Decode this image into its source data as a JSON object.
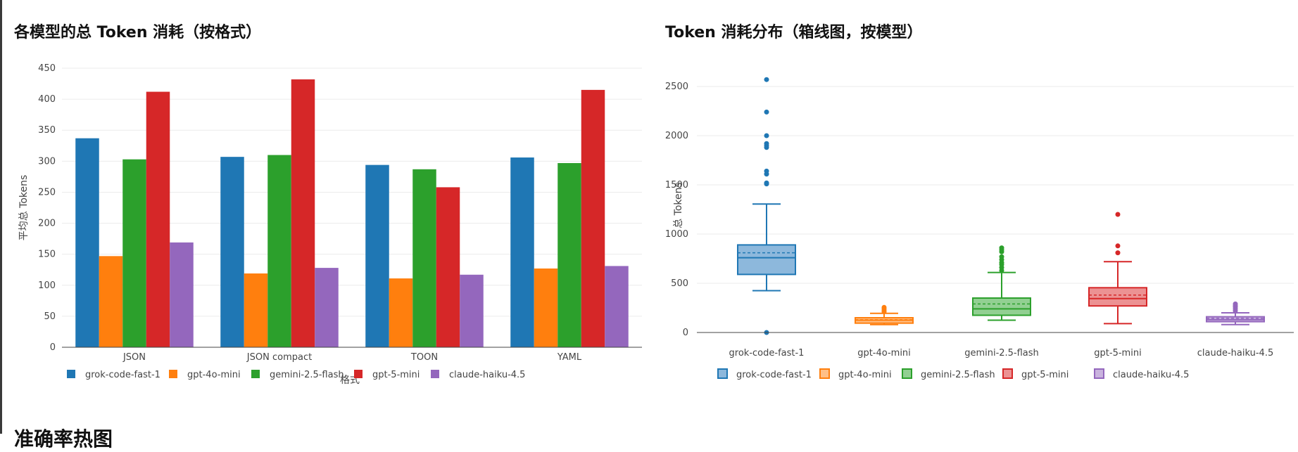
{
  "page": {
    "section_heading": "准确率热图"
  },
  "chart_data": [
    {
      "type": "bar",
      "title": "各模型的总 Token 消耗（按格式）",
      "xlabel": "格式",
      "ylabel": "平均总 Tokens",
      "ylim": [
        0,
        450
      ],
      "yticks": [
        0,
        50,
        100,
        150,
        200,
        250,
        300,
        350,
        400,
        450
      ],
      "categories": [
        "JSON",
        "JSON compact",
        "TOON",
        "YAML"
      ],
      "legend_position": "bottom",
      "series": [
        {
          "name": "grok-code-fast-1",
          "color": "#1f77b4",
          "values": [
            337,
            307,
            294,
            306
          ]
        },
        {
          "name": "gpt-4o-mini",
          "color": "#ff7f0e",
          "values": [
            147,
            119,
            111,
            127
          ]
        },
        {
          "name": "gemini-2.5-flash",
          "color": "#2ca02c",
          "values": [
            303,
            310,
            287,
            297
          ]
        },
        {
          "name": "gpt-5-mini",
          "color": "#d62728",
          "values": [
            412,
            432,
            258,
            415
          ]
        },
        {
          "name": "claude-haiku-4.5",
          "color": "#9467bd",
          "values": [
            169,
            128,
            117,
            131
          ]
        }
      ]
    },
    {
      "type": "box",
      "title": "Token 消耗分布（箱线图，按模型）",
      "xlabel": "",
      "ylabel": "总 Tokens",
      "ylim": [
        0,
        2600
      ],
      "yticks": [
        0,
        500,
        1000,
        1500,
        2000,
        2500
      ],
      "categories": [
        "grok-code-fast-1",
        "gpt-4o-mini",
        "gemini-2.5-flash",
        "gpt-5-mini",
        "claude-haiku-4.5"
      ],
      "legend_position": "bottom",
      "series": [
        {
          "name": "grok-code-fast-1",
          "color": "#1f77b4",
          "fill": "#8db8dc",
          "min": 425,
          "q1": 590,
          "median": 760,
          "mean": 810,
          "q3": 890,
          "max": 1305,
          "outliers": [
            0,
            1510,
            1520,
            1610,
            1640,
            1880,
            1900,
            1920,
            2000,
            2240,
            2570
          ]
        },
        {
          "name": "gpt-4o-mini",
          "color": "#ff7f0e",
          "fill": "#ffbf86",
          "min": 80,
          "q1": 95,
          "median": 125,
          "mean": 130,
          "q3": 150,
          "max": 195,
          "outliers": [
            210,
            225,
            240,
            255
          ]
        },
        {
          "name": "gemini-2.5-flash",
          "color": "#2ca02c",
          "fill": "#92d092",
          "min": 125,
          "q1": 175,
          "median": 240,
          "mean": 290,
          "q3": 350,
          "max": 610,
          "outliers": [
            630,
            660,
            690,
            710,
            740,
            770,
            820,
            840,
            860
          ]
        },
        {
          "name": "gpt-5-mini",
          "color": "#d62728",
          "fill": "#ec9293",
          "min": 90,
          "q1": 270,
          "median": 345,
          "mean": 380,
          "q3": 455,
          "max": 720,
          "outliers": [
            810,
            880,
            1200
          ]
        },
        {
          "name": "claude-haiku-4.5",
          "color": "#9467bd",
          "fill": "#c9b3de",
          "min": 80,
          "q1": 110,
          "median": 130,
          "mean": 145,
          "q3": 160,
          "max": 200,
          "outliers": [
            220,
            240,
            260,
            275,
            290
          ]
        }
      ]
    }
  ]
}
